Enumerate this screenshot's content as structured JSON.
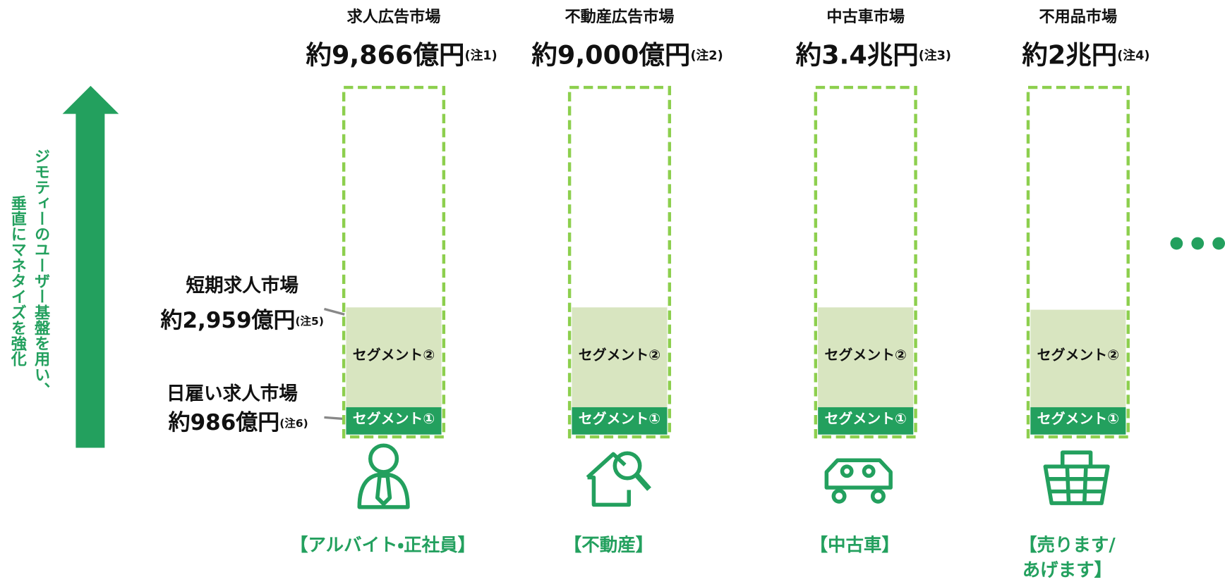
{
  "left": {
    "vertical_lines": [
      "ジモティーのユーザー基盤を用い、",
      "垂直にマネタイズを強化"
    ],
    "segment2_title": "短期求人市場",
    "segment2_size": "約2,959億円",
    "segment2_note": "(注5)",
    "segment1_title": "日雇い求人市場",
    "segment1_size": "約986億円",
    "segment1_note": "(注6)"
  },
  "columns": [
    {
      "title": "求人広告市場",
      "size": "約9,866億円",
      "note": "(注1)",
      "segment2": "セグメント②",
      "segment1": "セグメント①",
      "label": [
        "【アルバイト・正社員】"
      ]
    },
    {
      "title": "不動産広告市場",
      "size": "約9,000億円",
      "note": "(注2)",
      "segment2": "セグメント②",
      "segment1": "セグメント①",
      "label": [
        "【不動産】"
      ]
    },
    {
      "title": "中古車市場",
      "size": "約3.4兆円",
      "note": "(注3)",
      "segment2": "セグメント②",
      "segment1": "セグメント①",
      "label": [
        "【中古車】"
      ]
    },
    {
      "title": "不用品市場",
      "size": "約2兆円",
      "note": "(注4)",
      "segment2": "セグメント②",
      "segment1": "セグメント①",
      "label": [
        "【売ります/",
        "あげます】"
      ]
    }
  ]
}
